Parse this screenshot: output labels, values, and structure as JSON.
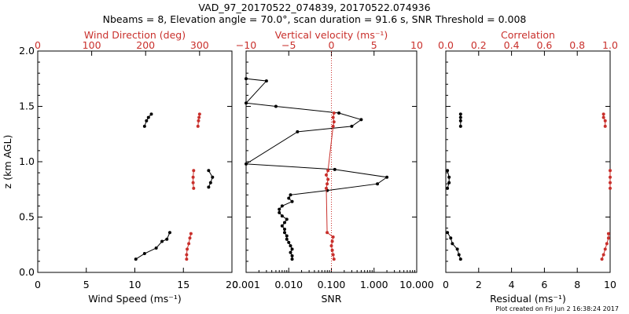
{
  "title_line1": "VAD_97_20170522_074839, 20170522.074936",
  "title_line2": "Nbeams = 8, Elevation angle = 70.0°, scan duration = 91.6 s, SNR Threshold = 0.008",
  "footer": "Plot created on Fri Jun  2 16:38:24 2017",
  "colors": {
    "primary": "#000000",
    "secondary": "#c9302c"
  },
  "chart_data": [
    {
      "type": "scatter",
      "ylabel": "z (km AGL)",
      "ylim": [
        0,
        2.0
      ],
      "yticks": [
        "0.0",
        "0.5",
        "1.0",
        "1.5",
        "2.0"
      ],
      "bottom_axis": {
        "label": "Wind Speed (ms⁻¹)",
        "lim": [
          0,
          20
        ],
        "ticks": [
          "0",
          "5",
          "10",
          "15",
          "20"
        ]
      },
      "top_axis": {
        "label": "Wind Direction (deg)",
        "lim": [
          0,
          360
        ],
        "ticks": [
          "0",
          "100",
          "200",
          "300"
        ]
      },
      "series": [
        {
          "name": "",
          "axis": "bottom",
          "color": "primary",
          "connected": true,
          "points": [
            {
              "x": 10.1,
              "y": 0.12
            },
            {
              "x": 11.0,
              "y": 0.17
            },
            {
              "x": 12.2,
              "y": 0.22
            },
            {
              "x": 12.8,
              "y": 0.28
            },
            {
              "x": 13.3,
              "y": 0.3
            },
            {
              "x": 13.6,
              "y": 0.36
            },
            {
              "x": 17.6,
              "y": 0.77
            },
            {
              "x": 17.8,
              "y": 0.81
            },
            {
              "x": 18.0,
              "y": 0.86
            },
            {
              "x": 17.6,
              "y": 0.92
            },
            {
              "x": 11.0,
              "y": 1.32
            },
            {
              "x": 11.2,
              "y": 1.37
            },
            {
              "x": 11.4,
              "y": 1.4
            },
            {
              "x": 11.7,
              "y": 1.43
            }
          ]
        },
        {
          "name": "",
          "axis": "top",
          "color": "secondary",
          "connected": true,
          "points": [
            {
              "x": 276,
              "y": 0.12
            },
            {
              "x": 276,
              "y": 0.16
            },
            {
              "x": 277,
              "y": 0.21
            },
            {
              "x": 280,
              "y": 0.26
            },
            {
              "x": 282,
              "y": 0.31
            },
            {
              "x": 284,
              "y": 0.35
            },
            {
              "x": 289,
              "y": 0.76
            },
            {
              "x": 288,
              "y": 0.81
            },
            {
              "x": 288,
              "y": 0.86
            },
            {
              "x": 289,
              "y": 0.92
            },
            {
              "x": 297,
              "y": 1.32
            },
            {
              "x": 298,
              "y": 1.37
            },
            {
              "x": 299,
              "y": 1.4
            },
            {
              "x": 300,
              "y": 1.43
            }
          ]
        }
      ]
    },
    {
      "type": "line",
      "ylim": [
        0,
        2.0
      ],
      "bottom_axis": {
        "label": "SNR",
        "scale": "log",
        "lim": [
          0.001,
          10
        ],
        "ticks": [
          "0.001",
          "0.010",
          "0.100",
          "1.000",
          "10.000"
        ]
      },
      "top_axis": {
        "label": "Vertical velocity (ms⁻¹)",
        "lim": [
          -10,
          10
        ],
        "ticks": [
          "−10",
          "−5",
          "0",
          "5",
          "10"
        ]
      },
      "reference_line": {
        "axis": "top",
        "x": 0,
        "style": "dotted",
        "color": "secondary"
      },
      "series": [
        {
          "name": "",
          "axis": "bottom",
          "color": "primary",
          "connected": true,
          "points": [
            {
              "x": 0.012,
              "y": 0.12
            },
            {
              "x": 0.012,
              "y": 0.15
            },
            {
              "x": 0.011,
              "y": 0.18
            },
            {
              "x": 0.012,
              "y": 0.21
            },
            {
              "x": 0.011,
              "y": 0.24
            },
            {
              "x": 0.01,
              "y": 0.27
            },
            {
              "x": 0.009,
              "y": 0.3
            },
            {
              "x": 0.009,
              "y": 0.33
            },
            {
              "x": 0.008,
              "y": 0.36
            },
            {
              "x": 0.008,
              "y": 0.39
            },
            {
              "x": 0.007,
              "y": 0.42
            },
            {
              "x": 0.008,
              "y": 0.45
            },
            {
              "x": 0.009,
              "y": 0.48
            },
            {
              "x": 0.007,
              "y": 0.51
            },
            {
              "x": 0.006,
              "y": 0.54
            },
            {
              "x": 0.006,
              "y": 0.57
            },
            {
              "x": 0.007,
              "y": 0.6
            },
            {
              "x": 0.012,
              "y": 0.64
            },
            {
              "x": 0.01,
              "y": 0.67
            },
            {
              "x": 0.011,
              "y": 0.7
            },
            {
              "x": 0.08,
              "y": 0.74
            },
            {
              "x": 1.2,
              "y": 0.8
            },
            {
              "x": 2.0,
              "y": 0.86
            },
            {
              "x": 0.12,
              "y": 0.93
            },
            {
              "x": 0.001,
              "y": 0.98
            },
            {
              "x": 0.016,
              "y": 1.27
            },
            {
              "x": 0.3,
              "y": 1.32
            },
            {
              "x": 0.5,
              "y": 1.38
            },
            {
              "x": 0.15,
              "y": 1.44
            },
            {
              "x": 0.005,
              "y": 1.5
            },
            {
              "x": 0.001,
              "y": 1.53
            },
            {
              "x": 0.003,
              "y": 1.73
            },
            {
              "x": 0.001,
              "y": 1.75
            }
          ]
        },
        {
          "name": "",
          "axis": "top",
          "color": "secondary",
          "connected": true,
          "points": [
            {
              "x": 0.3,
              "y": 0.12
            },
            {
              "x": 0.2,
              "y": 0.16
            },
            {
              "x": 0.1,
              "y": 0.2
            },
            {
              "x": 0.0,
              "y": 0.24
            },
            {
              "x": 0.1,
              "y": 0.28
            },
            {
              "x": 0.2,
              "y": 0.32
            },
            {
              "x": -0.5,
              "y": 0.36
            },
            {
              "x": -0.6,
              "y": 0.76
            },
            {
              "x": -0.5,
              "y": 0.8
            },
            {
              "x": -0.4,
              "y": 0.84
            },
            {
              "x": -0.6,
              "y": 0.88
            },
            {
              "x": -0.4,
              "y": 0.92
            },
            {
              "x": 0.2,
              "y": 1.32
            },
            {
              "x": 0.3,
              "y": 1.36
            },
            {
              "x": 0.2,
              "y": 1.4
            },
            {
              "x": 0.3,
              "y": 1.44
            }
          ]
        }
      ]
    },
    {
      "type": "scatter",
      "ylim": [
        0,
        2.0
      ],
      "bottom_axis": {
        "label": "Residual (ms⁻¹)",
        "lim": [
          0,
          10
        ],
        "ticks": [
          "0",
          "2",
          "4",
          "6",
          "8",
          "10"
        ]
      },
      "top_axis": {
        "label": "Correlation",
        "lim": [
          0,
          1.0
        ],
        "ticks": [
          "0.0",
          "0.2",
          "0.4",
          "0.6",
          "0.8",
          "1.0"
        ]
      },
      "series": [
        {
          "name": "",
          "axis": "bottom",
          "color": "primary",
          "connected": true,
          "points": [
            {
              "x": 0.9,
              "y": 0.12
            },
            {
              "x": 0.8,
              "y": 0.16
            },
            {
              "x": 0.7,
              "y": 0.21
            },
            {
              "x": 0.4,
              "y": 0.26
            },
            {
              "x": 0.3,
              "y": 0.31
            },
            {
              "x": 0.1,
              "y": 0.36
            },
            {
              "x": 0.1,
              "y": 0.76
            },
            {
              "x": 0.2,
              "y": 0.81
            },
            {
              "x": 0.2,
              "y": 0.86
            },
            {
              "x": 0.1,
              "y": 0.92
            },
            {
              "x": 0.9,
              "y": 1.32
            },
            {
              "x": 0.9,
              "y": 1.37
            },
            {
              "x": 0.9,
              "y": 1.4
            },
            {
              "x": 0.9,
              "y": 1.43
            }
          ]
        },
        {
          "name": "",
          "axis": "top",
          "color": "secondary",
          "connected": true,
          "points": [
            {
              "x": 0.95,
              "y": 0.12
            },
            {
              "x": 0.96,
              "y": 0.16
            },
            {
              "x": 0.97,
              "y": 0.21
            },
            {
              "x": 0.98,
              "y": 0.26
            },
            {
              "x": 0.99,
              "y": 0.31
            },
            {
              "x": 0.99,
              "y": 0.35
            },
            {
              "x": 1.0,
              "y": 0.76
            },
            {
              "x": 1.0,
              "y": 0.81
            },
            {
              "x": 1.0,
              "y": 0.86
            },
            {
              "x": 1.0,
              "y": 0.92
            },
            {
              "x": 0.97,
              "y": 1.32
            },
            {
              "x": 0.97,
              "y": 1.37
            },
            {
              "x": 0.96,
              "y": 1.4
            },
            {
              "x": 0.96,
              "y": 1.43
            }
          ]
        }
      ]
    }
  ]
}
